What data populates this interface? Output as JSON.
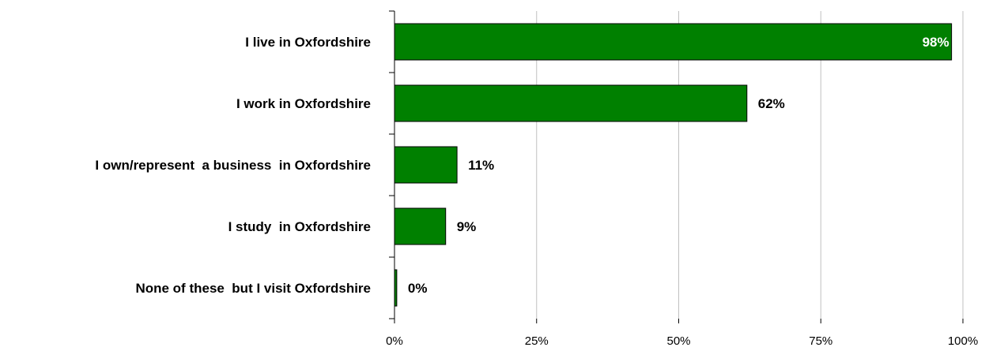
{
  "chart_data": {
    "type": "bar",
    "orientation": "horizontal",
    "title": "",
    "xlabel": "",
    "ylabel": "",
    "categories": [
      "I live in Oxfordshire",
      "I work in Oxfordshire",
      "I own/represent  a business  in Oxfordshire",
      "I study  in Oxfordshire",
      "None of these  but I visit Oxfordshire"
    ],
    "values": [
      98,
      62,
      11,
      9,
      0.4
    ],
    "data_labels": [
      "98%",
      "62%",
      "11%",
      "9%",
      "0%"
    ],
    "xlim": [
      0,
      100
    ],
    "x_ticks": [
      0,
      25,
      50,
      75,
      100
    ],
    "x_tick_labels": [
      "0%",
      "25%",
      "50%",
      "75%",
      "100%"
    ],
    "grid": "vertical",
    "legend": "none",
    "bar_color": "#008000",
    "bar_edge_color": "#000000",
    "gridline_color": "#c0c0c0"
  }
}
